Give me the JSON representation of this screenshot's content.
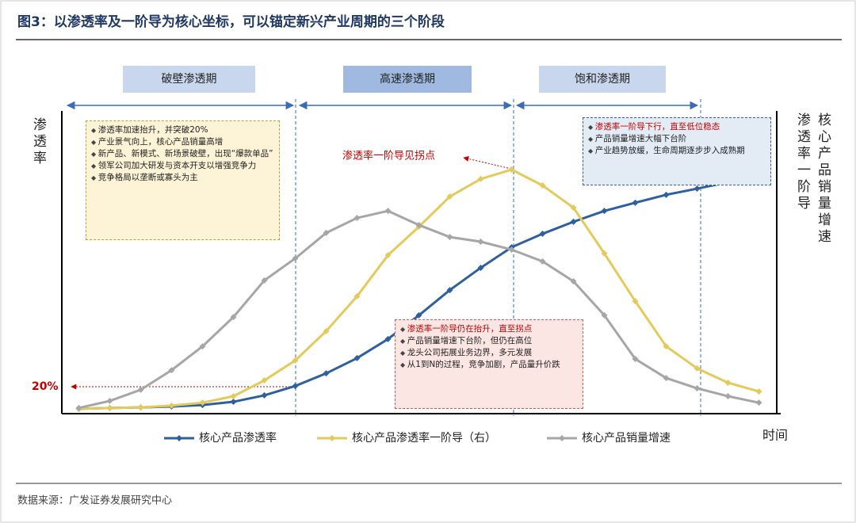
{
  "chart_data": {
    "type": "line",
    "title": "图3：以渗透率及一阶导为核心坐标，可以锚定新兴产业周期的三个阶段",
    "phases": [
      "破壁渗透期",
      "高速渗透期",
      "饱和渗透期"
    ],
    "y_label": "渗透率",
    "y2_label_1": "渗透率一阶导",
    "y2_label_2": "核心产品销量增速",
    "x_label": "时间",
    "x": [
      0,
      1,
      2,
      3,
      4,
      5,
      6,
      7,
      8,
      9,
      10,
      11,
      12,
      13,
      14,
      15,
      16,
      17,
      18,
      19,
      20,
      21,
      22
    ],
    "xlim": [
      -0.5,
      22.5
    ],
    "ylim": [
      0,
      100
    ],
    "series": [
      {
        "name": "核心产品渗透率",
        "color": "#2e5f9e",
        "values": [
          1.1,
          1.4,
          1.6,
          1.9,
          2.4,
          3.5,
          5.7,
          8.9,
          13.2,
          18.4,
          24.9,
          33.0,
          41.6,
          49.2,
          56.2,
          60.8,
          64.9,
          68.6,
          71.4,
          74.1,
          76.2,
          78.4,
          null
        ]
      },
      {
        "name": "核心产品渗透率一阶导（右）",
        "color": "#e2cb5a",
        "values": [
          1.1,
          1.4,
          1.6,
          2.2,
          3.2,
          5.4,
          10.8,
          17.6,
          27.6,
          39.5,
          53.5,
          63.2,
          73.5,
          79.5,
          82.7,
          77.3,
          69.7,
          54.1,
          37.8,
          22.4,
          14.9,
          10.0,
          7.0
        ]
      },
      {
        "name": "核心产品销量增速",
        "color": "#a6a6a6",
        "values": [
          1.4,
          3.8,
          7.6,
          14.3,
          22.4,
          32.4,
          44.9,
          52.4,
          61.1,
          66.2,
          68.6,
          63.8,
          59.7,
          58.1,
          55.4,
          51.4,
          44.6,
          33.0,
          18.1,
          11.6,
          8.1,
          5.4,
          3.2
        ]
      }
    ],
    "annotations": [
      "20%",
      "渗透率一阶导见拐点"
    ],
    "box1": [
      "渗透率加速抬升，并突破20%",
      "产业景气向上，核心产品销量高增",
      "新产品、新模式、新场景破壁，出现“爆款单品”",
      "领军公司加大研发与资本开支以增强竞争力",
      "竞争格局以垄断或寡头为主"
    ],
    "box2": [
      "渗透率一阶导仍在抬升，直至拐点",
      "产品销量增速下台阶，但仍在高位",
      "龙头公司拓展业务边界，多元发展",
      "从1到N的过程，竞争加剧，产品量升价跌"
    ],
    "box3": [
      "渗透率一阶导下行，直至低位稳态",
      "产品销量增速大幅下台阶",
      "产业趋势放缓，生命周期逐步步入成熟期"
    ],
    "source": "数据来源：广发证券发展研究中心"
  }
}
